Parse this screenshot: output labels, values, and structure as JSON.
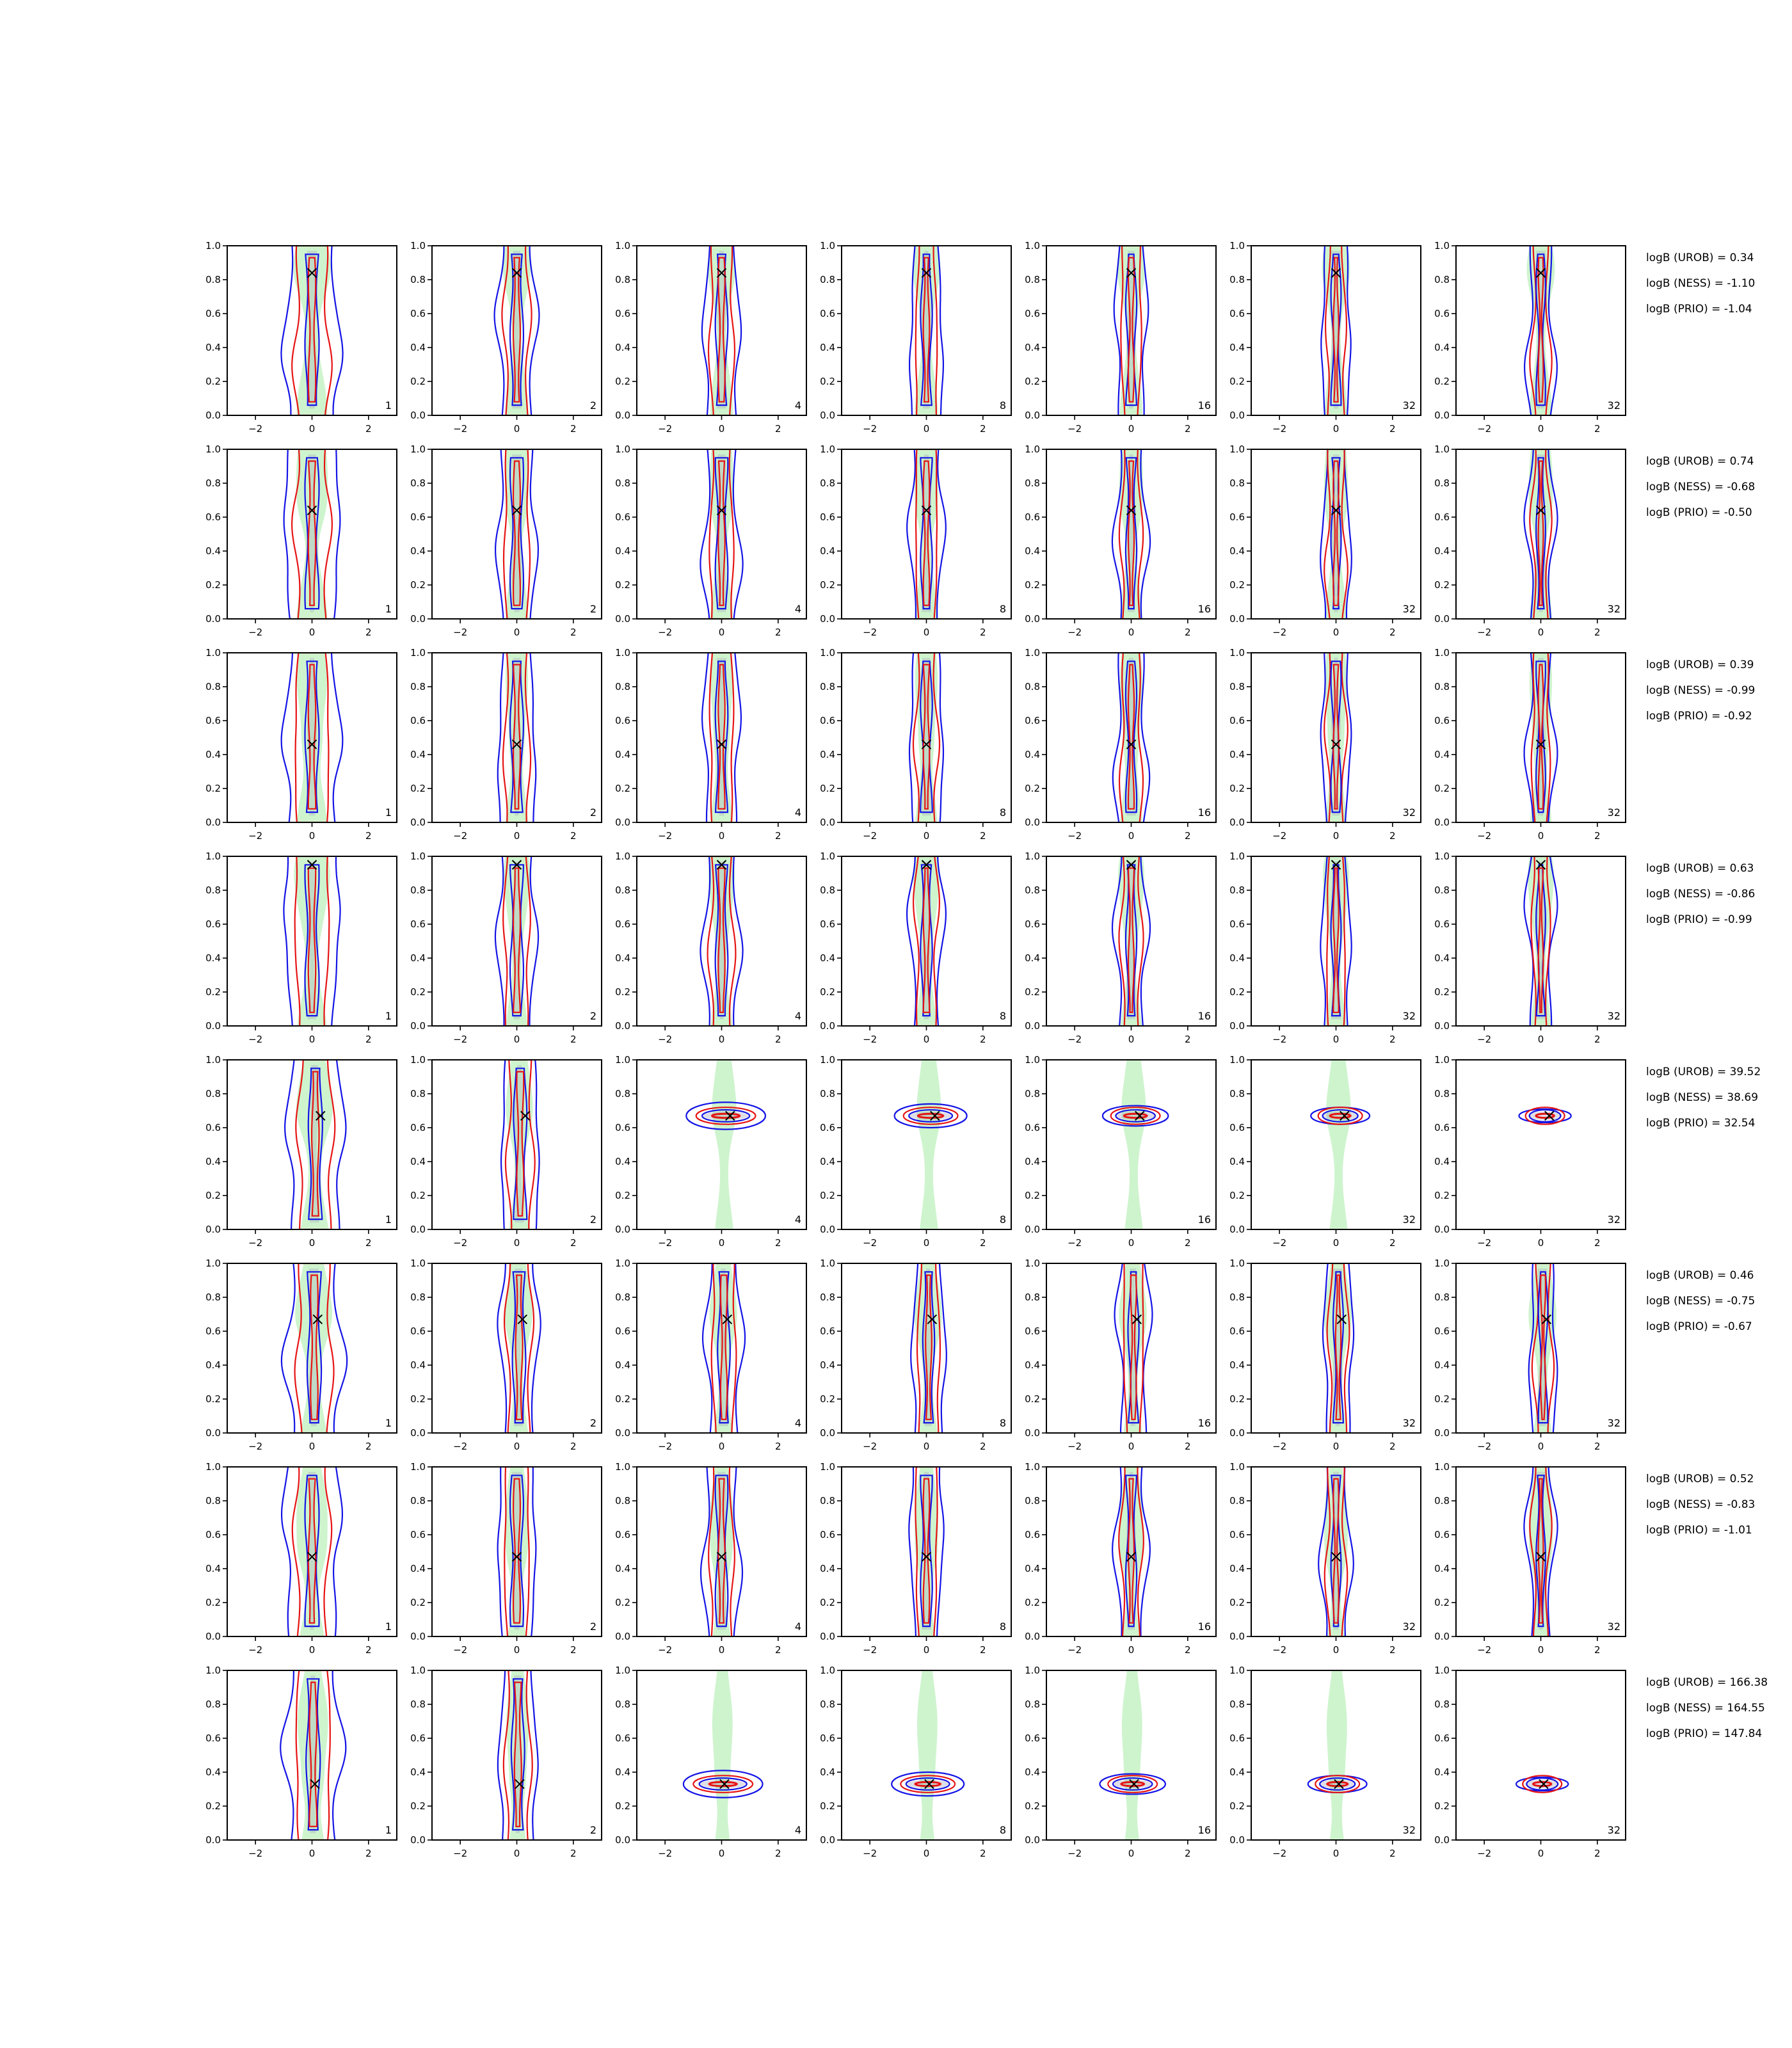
{
  "chart_data": {
    "type": "contour-grid",
    "rows": 8,
    "cols": 7,
    "xlim": [
      -3,
      3
    ],
    "ylim": [
      0,
      1
    ],
    "xticks": [
      "−2",
      "0",
      "2"
    ],
    "yticks": [
      "0.0",
      "0.2",
      "0.4",
      "0.6",
      "0.8",
      "1.0"
    ],
    "col_labels": [
      "1",
      "2",
      "4",
      "8",
      "16",
      "32",
      "32"
    ],
    "colors": {
      "blue": "#1414e6",
      "red": "#e61414",
      "green_fill": "#b4eeb4",
      "gray_fill": "#a0a0b4",
      "marker": "#000000"
    },
    "rows_data": [
      {
        "truth": [
          0,
          0.84
        ],
        "annotations": [
          "logB (UROB) = 0.34",
          "logB (NESS) = -1.10",
          "logB (PRIO) = -1.04"
        ],
        "profile": "neutral"
      },
      {
        "truth": [
          0,
          0.64
        ],
        "annotations": [
          "logB (UROB) = 0.74",
          "logB (NESS) = -0.68",
          "logB (PRIO) = -0.50"
        ],
        "profile": "neutral"
      },
      {
        "truth": [
          0,
          0.46
        ],
        "annotations": [
          "logB (UROB) = 0.39",
          "logB (NESS) = -0.99",
          "logB (PRIO) = -0.92"
        ],
        "profile": "neutral"
      },
      {
        "truth": [
          0,
          0.95
        ],
        "annotations": [
          "logB (UROB) = 0.63",
          "logB (NESS) = -0.86",
          "logB (PRIO) = -0.99"
        ],
        "profile": "neutral"
      },
      {
        "truth": [
          0.3,
          0.67
        ],
        "annotations": [
          "logB (UROB) = 39.52",
          "logB (NESS) = 38.69",
          "logB (PRIO) = 32.54"
        ],
        "profile": "concentrating"
      },
      {
        "truth": [
          0.2,
          0.67
        ],
        "annotations": [
          "logB (UROB) = 0.46",
          "logB (NESS) = -0.75",
          "logB (PRIO) = -0.67"
        ],
        "profile": "neutral"
      },
      {
        "truth": [
          0,
          0.47
        ],
        "annotations": [
          "logB (UROB) = 0.52",
          "logB (NESS) = -0.83",
          "logB (PRIO) = -1.01"
        ],
        "profile": "neutral"
      },
      {
        "truth": [
          0.1,
          0.33
        ],
        "annotations": [
          "logB (UROB) = 166.38",
          "logB (NESS) = 164.55",
          "logB (PRIO) = 147.84"
        ],
        "profile": "concentrating"
      }
    ]
  }
}
